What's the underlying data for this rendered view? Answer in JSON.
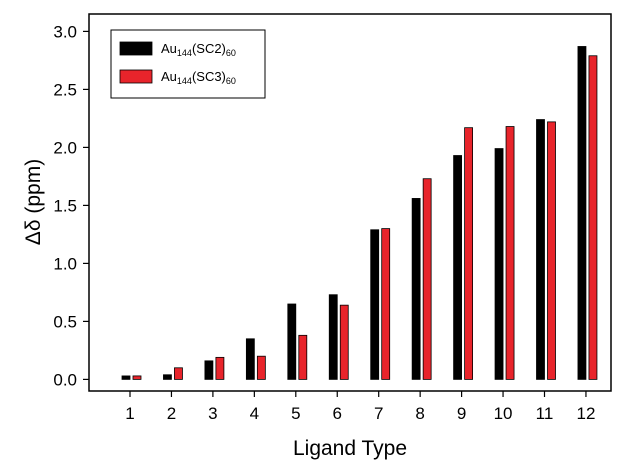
{
  "chart_data": {
    "type": "bar",
    "title": "",
    "xlabel": "Ligand Type",
    "ylabel": "Δδ (ppm)",
    "categories": [
      "1",
      "2",
      "3",
      "4",
      "5",
      "6",
      "7",
      "8",
      "9",
      "10",
      "11",
      "12"
    ],
    "ylim": [
      -0.1,
      3.15
    ],
    "yticks": [
      "0.0",
      "0.5",
      "1.0",
      "1.5",
      "2.0",
      "2.5",
      "3.0"
    ],
    "grid": false,
    "legend_position": "top-left",
    "series": [
      {
        "name": "Au144(SC2)60",
        "legend": {
          "base": "Au",
          "sub1": "144",
          "mid": "(SC2)",
          "sub2": "60"
        },
        "color": "#000000",
        "values": [
          0.03,
          0.04,
          0.16,
          0.35,
          0.65,
          0.73,
          1.29,
          1.56,
          1.93,
          1.99,
          2.24,
          2.87
        ]
      },
      {
        "name": "Au144(SC3)60",
        "legend": {
          "base": "Au",
          "sub1": "144",
          "mid": "(SC3)",
          "sub2": "60"
        },
        "color": "#e8242b",
        "values": [
          0.03,
          0.1,
          0.19,
          0.2,
          0.38,
          0.64,
          1.3,
          1.73,
          2.17,
          2.18,
          2.22,
          2.79
        ]
      }
    ]
  }
}
